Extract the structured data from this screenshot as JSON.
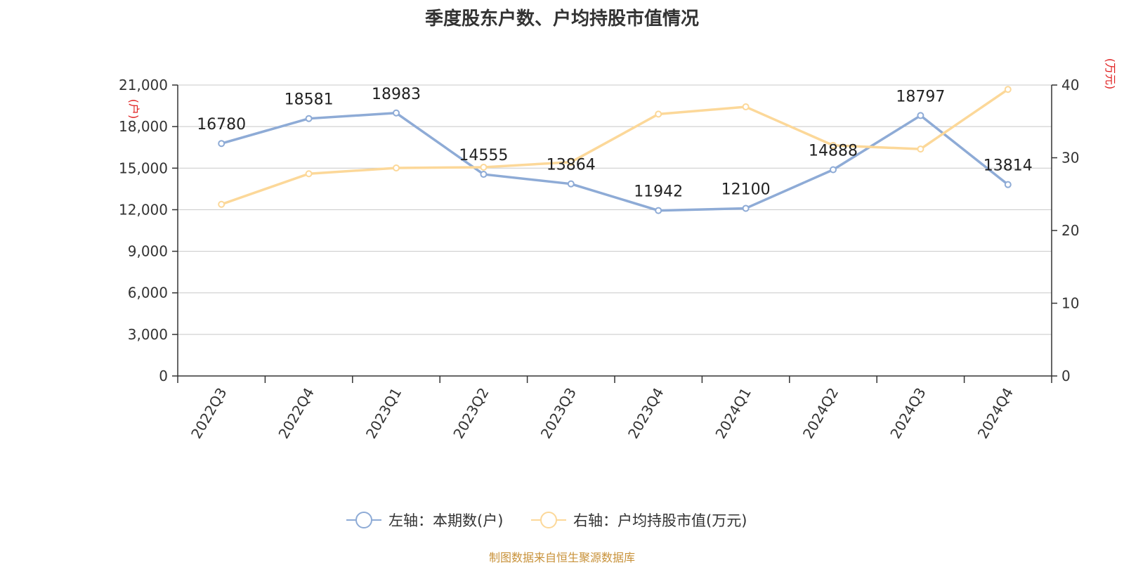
{
  "chart_data": {
    "type": "line",
    "title": "季度股东户数、户均持股市值情况",
    "categories": [
      "2022Q3",
      "2022Q4",
      "2023Q1",
      "2023Q2",
      "2023Q3",
      "2023Q4",
      "2024Q1",
      "2024Q2",
      "2024Q3",
      "2024Q4"
    ],
    "series": [
      {
        "name": "左轴：本期数(户)",
        "axis": "left",
        "color": "#8eabd6",
        "values": [
          16780,
          18581,
          18983,
          14555,
          13864,
          11942,
          12100,
          14888,
          18797,
          13814
        ],
        "labels": [
          "16780",
          "18581",
          "18983",
          "14555",
          "13864",
          "11942",
          "12100",
          "14888",
          "18797",
          "13814"
        ]
      },
      {
        "name": "右轴：户均持股市值(万元)",
        "axis": "right",
        "color": "#fcd899",
        "values": [
          23.6,
          27.8,
          28.6,
          28.7,
          29.4,
          36.0,
          37.0,
          31.7,
          31.2,
          39.4
        ]
      }
    ],
    "left_axis": {
      "unit": "(户)",
      "ylim": [
        0,
        21000
      ],
      "ticks": [
        0,
        3000,
        6000,
        9000,
        12000,
        15000,
        18000,
        21000
      ],
      "tick_labels": [
        "0",
        "3,000",
        "6,000",
        "9,000",
        "12,000",
        "15,000",
        "18,000",
        "21,000"
      ]
    },
    "right_axis": {
      "unit": "(万元)",
      "ylim": [
        0,
        40
      ],
      "ticks": [
        0,
        10,
        20,
        30,
        40
      ],
      "tick_labels": [
        "0",
        "10",
        "20",
        "30",
        "40"
      ]
    },
    "grid": true,
    "legend_position": "bottom-center"
  },
  "source_note": "制图数据来自恒生聚源数据库"
}
